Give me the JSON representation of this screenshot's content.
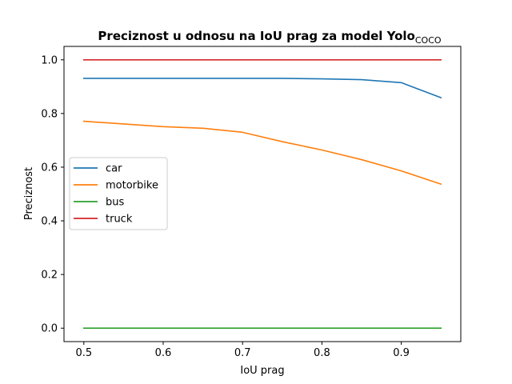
{
  "chart_data": {
    "type": "line",
    "title": "Preciznost u odnosu na IoU prag za model Yolo",
    "title_subscript": "COCO",
    "xlabel": "IoU prag",
    "ylabel": "Preciznost",
    "xlim": [
      0.475,
      0.975
    ],
    "ylim": [
      -0.05,
      1.05
    ],
    "xticks": [
      0.5,
      0.6,
      0.7,
      0.8,
      0.9
    ],
    "xtick_labels": [
      "0.5",
      "0.6",
      "0.7",
      "0.8",
      "0.9"
    ],
    "yticks": [
      0.0,
      0.2,
      0.4,
      0.6,
      0.8,
      1.0
    ],
    "ytick_labels": [
      "0.0",
      "0.2",
      "0.4",
      "0.6",
      "0.8",
      "1.0"
    ],
    "grid": false,
    "legend_position": "center-left",
    "x": [
      0.5,
      0.55,
      0.6,
      0.65,
      0.7,
      0.75,
      0.8,
      0.85,
      0.9,
      0.95
    ],
    "series": [
      {
        "name": "car",
        "color": "#1f77b4",
        "values": [
          0.931,
          0.931,
          0.931,
          0.931,
          0.931,
          0.931,
          0.929,
          0.926,
          0.915,
          0.859
        ]
      },
      {
        "name": "motorbike",
        "color": "#ff7f0e",
        "values": [
          0.771,
          0.761,
          0.751,
          0.745,
          0.73,
          0.695,
          0.664,
          0.628,
          0.586,
          0.537
        ]
      },
      {
        "name": "bus",
        "color": "#2ca02c",
        "values": [
          0.0,
          0.0,
          0.0,
          0.0,
          0.0,
          0.0,
          0.0,
          0.0,
          0.0,
          0.0
        ]
      },
      {
        "name": "truck",
        "color": "#d62728",
        "values": [
          1.0,
          1.0,
          1.0,
          1.0,
          1.0,
          1.0,
          1.0,
          1.0,
          1.0,
          1.0
        ]
      }
    ]
  }
}
